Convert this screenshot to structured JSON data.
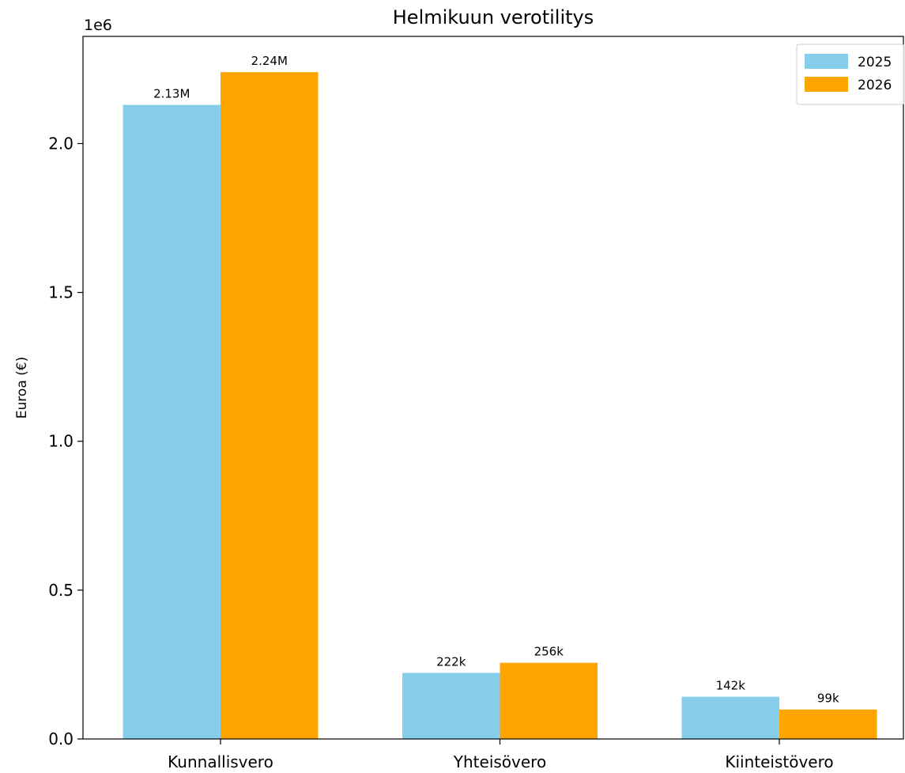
{
  "chart_data": {
    "type": "bar",
    "title": "Helmikuun verotilitys",
    "xlabel": "",
    "ylabel": "Euroa (€)",
    "y_offset_label": "1e6",
    "ylim": [
      0,
      2360000
    ],
    "yticks": [
      {
        "value": 0,
        "label": "0.0"
      },
      {
        "value": 500000,
        "label": "0.5"
      },
      {
        "value": 1000000,
        "label": "1.0"
      },
      {
        "value": 1500000,
        "label": "1.5"
      },
      {
        "value": 2000000,
        "label": "2.0"
      }
    ],
    "categories": [
      "Kunnallisvero",
      "Yhteisövero",
      "Kiinteistövero"
    ],
    "series": [
      {
        "name": "2025",
        "color": "#87ceeb",
        "values": [
          2130000,
          222000,
          142000
        ],
        "labels": [
          "2.13M",
          "222k",
          "142k"
        ]
      },
      {
        "name": "2026",
        "color": "#ffa500",
        "values": [
          2240000,
          256000,
          99000
        ],
        "labels": [
          "2.24M",
          "256k",
          "99k"
        ]
      }
    ],
    "legend": "top-right",
    "grid": false
  }
}
